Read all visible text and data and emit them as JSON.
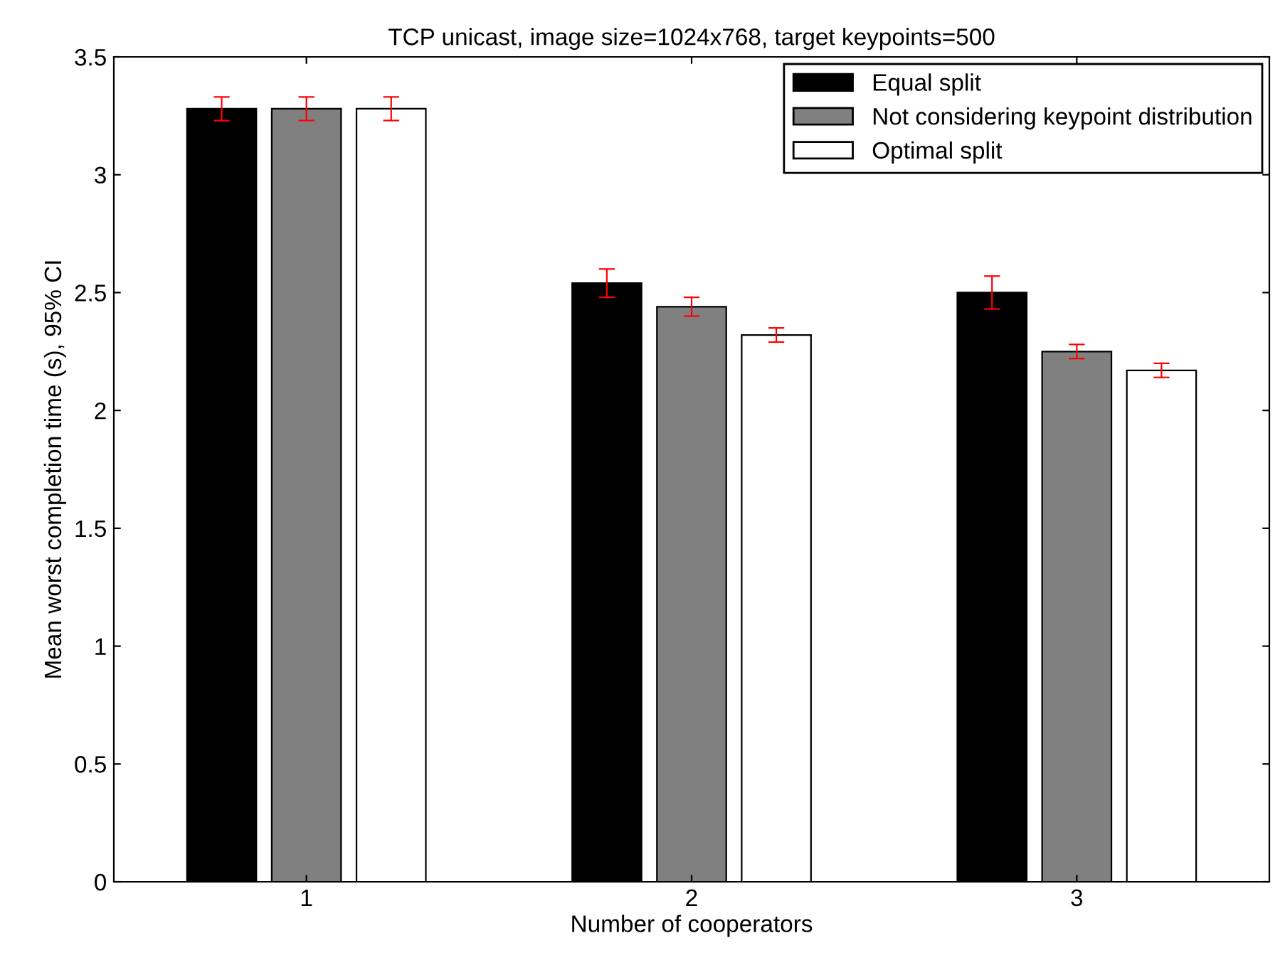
{
  "chart_data": {
    "type": "bar",
    "title": "TCP unicast, image size=1024x768, target keypoints=500",
    "xlabel": "Number of cooperators",
    "ylabel": "Mean worst completion time (s), 95% CI",
    "categories": [
      "1",
      "2",
      "3"
    ],
    "series": [
      {
        "name": "Equal split",
        "color": "#000000",
        "values": [
          3.28,
          2.54,
          2.5
        ],
        "errors": [
          0.05,
          0.06,
          0.07
        ]
      },
      {
        "name": "Not considering keypoint distribution",
        "color": "#808080",
        "values": [
          3.28,
          2.44,
          2.25
        ],
        "errors": [
          0.05,
          0.04,
          0.03
        ]
      },
      {
        "name": "Optimal split",
        "color": "#ffffff",
        "values": [
          3.28,
          2.32,
          2.17
        ],
        "errors": [
          0.05,
          0.03,
          0.03
        ]
      }
    ],
    "ylim": [
      0,
      3.5
    ],
    "yticks": [
      0,
      0.5,
      1,
      1.5,
      2,
      2.5,
      3,
      3.5
    ],
    "legend": "top right",
    "grid": false
  }
}
